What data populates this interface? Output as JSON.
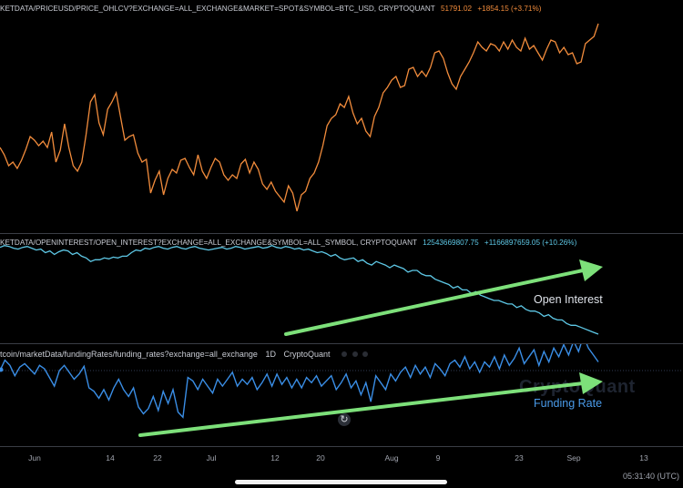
{
  "panes": {
    "price": {
      "source": "KETDATA/PRICEUSD/PRICE_OHLCV?EXCHANGE=ALL_EXCHANGE&MARKET=SPOT&SYMBOL=BTC_USD, CRYPTOQUANT",
      "value": "51791.02",
      "change": "+1854.15 (+3.71%)",
      "color": "#f28c3c"
    },
    "open_interest": {
      "source": "KETDATA/OPENINTEREST/OPEN_INTEREST?EXCHANGE=ALL_EXCHANGE&SYMBOL=ALL_SYMBOL, CRYPTOQUANT",
      "value": "12543669807.75",
      "change": "+1166897659.05 (+10.26%)",
      "color": "#5ec8e6",
      "annotation": "Open Interest"
    },
    "funding": {
      "source": "tcoin/marketData/fundingRates/funding_rates?exchange=all_exchange",
      "interval": "1D",
      "brand": "CryptoQuant",
      "color": "#3a8ee6",
      "annotation": "Funding Rate",
      "watermark": "CryptoQuant"
    }
  },
  "xaxis": [
    "Jun",
    "14",
    "22",
    "Jul",
    "12",
    "20",
    "Aug",
    "9",
    "23",
    "Sep",
    "13"
  ],
  "clock": "05:31:40 (UTC)",
  "arrow_color": "#7de07a",
  "chart_data": [
    {
      "type": "line",
      "title": "",
      "series": [
        {
          "values": [
            162,
            170,
            182,
            178,
            185,
            176,
            164,
            150,
            154,
            160,
            155,
            162,
            145,
            178,
            165,
            136,
            162,
            182,
            188,
            178,
            148,
            112,
            104,
            135,
            148,
            120,
            112,
            102,
            128,
            154,
            150,
            148,
            168,
            178,
            175,
            212,
            198,
            188,
            214,
            196,
            186,
            190,
            176,
            174,
            184,
            192,
            170,
            188,
            196,
            184,
            174,
            178,
            192,
            198,
            192,
            196,
            180,
            175,
            190,
            178,
            186,
            202,
            208,
            200,
            210,
            216,
            222,
            204,
            212,
            232,
            214,
            210,
            196,
            190,
            178,
            160,
            138,
            130,
            126,
            114,
            118,
            106,
            124,
            136,
            130,
            144,
            150,
            128,
            118,
            102,
            96,
            88,
            84,
            96,
            94,
            76,
            74,
            84,
            78,
            84,
            74,
            58,
            56,
            64,
            80,
            92,
            98,
            84,
            76,
            68,
            58,
            46,
            52,
            56,
            48,
            50,
            56,
            46,
            54,
            44,
            52,
            56,
            42,
            54,
            50,
            58,
            66,
            54,
            44,
            46,
            58,
            52,
            60,
            58,
            70,
            68,
            48,
            44,
            40,
            26
          ]
        }
      ]
    },
    {
      "type": "line",
      "title": "",
      "series": [
        {
          "values": [
            98,
            100,
            99,
            97,
            96,
            98,
            99,
            97,
            95,
            96,
            92,
            94,
            90,
            93,
            95,
            94,
            90,
            92,
            88,
            86,
            82,
            84,
            84,
            86,
            85,
            87,
            86,
            88,
            88,
            92,
            95,
            94,
            97,
            96,
            98,
            99,
            97,
            96,
            98,
            99,
            97,
            96,
            98,
            99,
            97,
            96,
            95,
            96,
            97,
            98,
            96,
            97,
            99,
            98,
            96,
            97,
            98,
            99,
            97,
            98,
            100,
            98,
            97,
            99,
            98,
            96,
            97,
            95,
            96,
            94,
            92,
            93,
            91,
            88,
            90,
            86,
            84,
            85,
            86,
            82,
            84,
            80,
            78,
            82,
            80,
            78,
            75,
            78,
            76,
            74,
            70,
            72,
            72,
            68,
            66,
            66,
            62,
            60,
            58,
            56,
            52,
            54,
            50,
            50,
            46,
            48,
            44,
            42,
            40,
            38,
            38,
            36,
            34,
            34,
            30,
            32,
            28,
            26,
            26,
            24,
            20,
            22,
            18,
            16,
            16,
            12,
            10,
            10,
            8,
            6,
            4,
            2,
            0
          ]
        }
      ]
    },
    {
      "type": "line",
      "title": "",
      "series": [
        {
          "values": [
            0.0,
            1.2,
            0.6,
            -0.6,
            0.4,
            0.8,
            0.2,
            -0.4,
            0.6,
            0.2,
            -0.8,
            -1.8,
            0.0,
            0.6,
            -0.2,
            -1.0,
            -0.4,
            0.5,
            -2.0,
            -2.4,
            -3.2,
            -2.2,
            -3.4,
            -2.0,
            -1.0,
            -2.2,
            -3.0,
            -2.0,
            -4.2,
            -5.0,
            -4.4,
            -3.0,
            -4.6,
            -2.4,
            -3.8,
            -2.2,
            -4.8,
            -5.4,
            -0.8,
            -1.2,
            -2.2,
            -1.0,
            -1.8,
            -2.6,
            -1.0,
            -1.8,
            -1.0,
            -0.2,
            -1.8,
            -1.0,
            -1.6,
            -0.8,
            -2.2,
            -1.4,
            -0.4,
            -1.8,
            -0.4,
            -1.6,
            -0.8,
            -2.0,
            -1.0,
            -2.0,
            -0.8,
            -1.4,
            -0.6,
            -1.8,
            -1.2,
            -0.6,
            -2.2,
            -1.4,
            -0.4,
            -2.0,
            -1.2,
            -2.8,
            -1.4,
            -3.6,
            -0.6,
            -1.4,
            -2.2,
            -0.4,
            -1.2,
            -0.2,
            0.4,
            -0.8,
            0.6,
            -0.4,
            0.4,
            -0.8,
            0.8,
            0.2,
            -0.6,
            0.8,
            1.2,
            0.4,
            1.6,
            0.2,
            1.0,
            -0.2,
            1.0,
            0.4,
            1.6,
            0.2,
            1.8,
            0.6,
            1.4,
            2.6,
            0.8,
            1.6,
            2.4,
            0.6,
            2.2,
            1.0,
            2.6,
            1.6,
            3.0,
            1.8,
            3.4,
            2.2,
            4.0,
            2.6,
            1.8,
            1.0
          ]
        }
      ]
    }
  ]
}
